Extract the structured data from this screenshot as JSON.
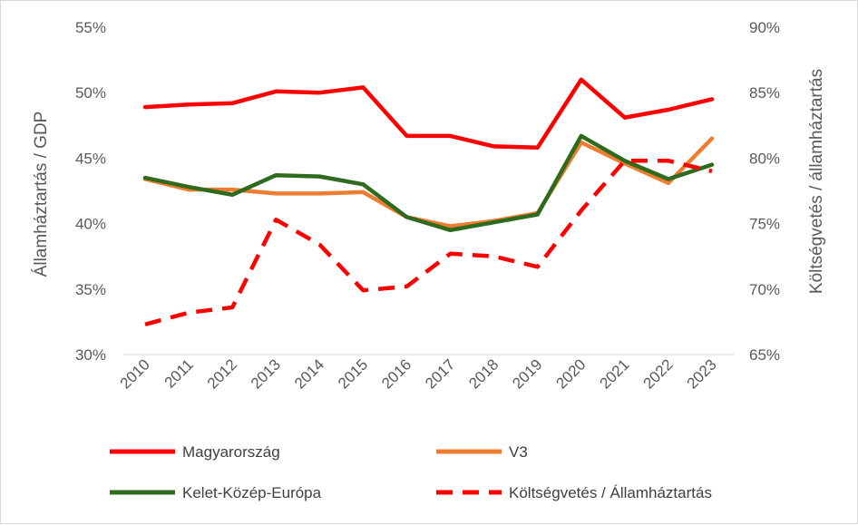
{
  "chart_data": {
    "type": "line",
    "title": "",
    "categories": [
      "2010",
      "2011",
      "2012",
      "2013",
      "2014",
      "2015",
      "2016",
      "2017",
      "2018",
      "2019",
      "2020",
      "2021",
      "2022",
      "2023"
    ],
    "y_left": {
      "label": "Államháztartás / GDP",
      "range": [
        30,
        55
      ],
      "ticks": [
        30,
        35,
        40,
        45,
        50,
        55
      ],
      "tick_labels": [
        "30%",
        "35%",
        "40%",
        "45%",
        "50%",
        "55%"
      ]
    },
    "y_right": {
      "label": "Költségvetés / államháztartás",
      "range": [
        65,
        90
      ],
      "ticks": [
        65,
        70,
        75,
        80,
        85,
        90
      ],
      "tick_labels": [
        "65%",
        "70%",
        "75%",
        "80%",
        "85%",
        "90%"
      ]
    },
    "grid": false,
    "legend_position": "bottom",
    "series": [
      {
        "name": "Magyarország",
        "axis": "left",
        "color": "#ff0000",
        "dash": "solid",
        "values": [
          48.9,
          49.1,
          49.2,
          50.1,
          50.0,
          50.4,
          46.7,
          46.7,
          45.9,
          45.8,
          51.0,
          48.1,
          48.7,
          49.5
        ]
      },
      {
        "name": "V3",
        "axis": "left",
        "color": "#ed7d31",
        "dash": "solid",
        "values": [
          43.4,
          42.6,
          42.6,
          42.3,
          42.3,
          42.4,
          40.5,
          39.8,
          40.2,
          40.8,
          46.2,
          44.6,
          43.1,
          46.5
        ]
      },
      {
        "name": "Kelet-Közép-Európa",
        "axis": "left",
        "color": "#2e6b1f",
        "dash": "solid",
        "values": [
          43.5,
          42.8,
          42.2,
          43.7,
          43.6,
          43.0,
          40.5,
          39.5,
          40.1,
          40.7,
          46.7,
          44.8,
          43.4,
          44.5
        ]
      },
      {
        "name": "Költségvetés / Államháztartás",
        "axis": "right",
        "color": "#ff0000",
        "dash": "dashed",
        "values": [
          67.3,
          68.2,
          68.6,
          75.3,
          73.4,
          69.9,
          70.2,
          72.7,
          72.5,
          71.7,
          76.0,
          79.8,
          79.8,
          79.0
        ]
      }
    ]
  }
}
